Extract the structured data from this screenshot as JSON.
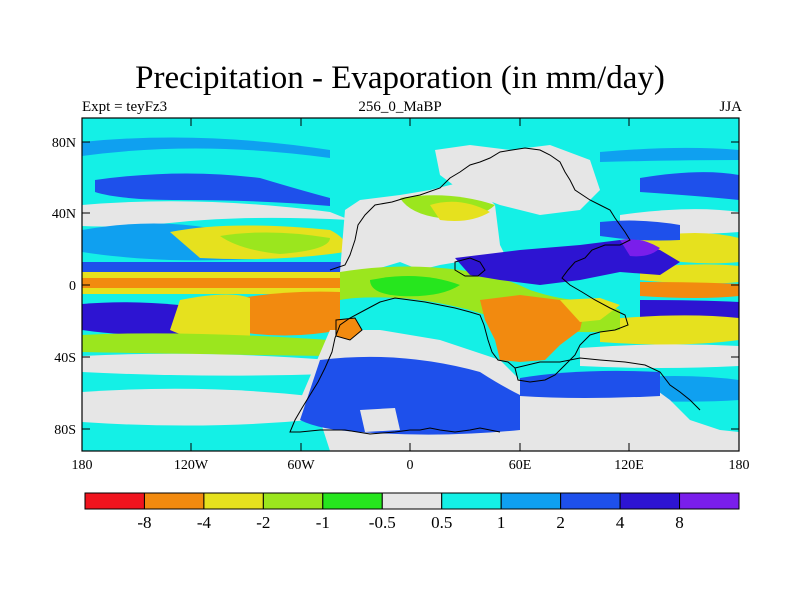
{
  "title": "Precipitation - Evaporation (in mm/day)",
  "subtitle_left": "Expt = teyFz3",
  "subtitle_center": "256_0_MaBP",
  "subtitle_right": "JJA",
  "lat_ticks": [
    "80N",
    "40N",
    "0",
    "40S",
    "80S"
  ],
  "lon_ticks": [
    "180",
    "120W",
    "60W",
    "0",
    "60E",
    "120E",
    "180"
  ],
  "legend": {
    "colors": [
      "#f0141e",
      "#f28a0f",
      "#e6e11e",
      "#9be61e",
      "#26e61e",
      "#e6e6e6",
      "#14f0e6",
      "#0fa0f0",
      "#1e50eb",
      "#2d14d2",
      "#7a1eeb"
    ],
    "labels": [
      "-8",
      "-4",
      "-2",
      "-1",
      "-0.5",
      "0.5",
      "1",
      "2",
      "4",
      "8"
    ]
  }
}
